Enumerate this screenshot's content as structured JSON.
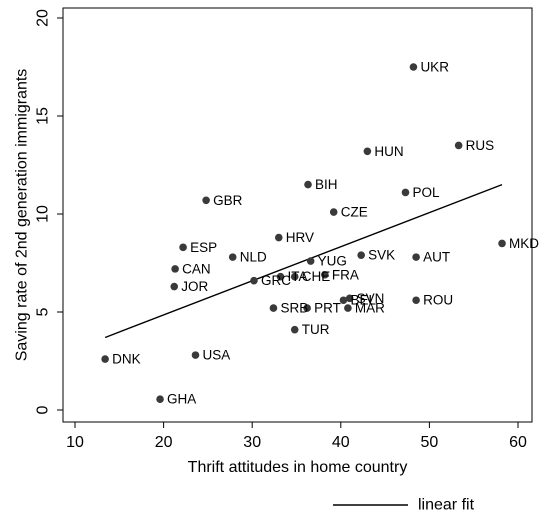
{
  "chart_data": {
    "type": "scatter",
    "xlabel": "Thrift attitudes in home country",
    "ylabel": "Saving rate of 2nd generation immigrants",
    "xlim": [
      10,
      60
    ],
    "ylim": [
      0,
      20
    ],
    "x_ticks": [
      10,
      20,
      30,
      40,
      50,
      60
    ],
    "y_ticks": [
      0,
      5,
      10,
      15,
      20
    ],
    "grid": false,
    "colors": {
      "points": "#3a3a3a",
      "fit_line": "#000000",
      "axis": "#000000"
    },
    "points": [
      {
        "label": "UKR",
        "x": 48.2,
        "y": 17.5
      },
      {
        "label": "RUS",
        "x": 53.3,
        "y": 13.5
      },
      {
        "label": "HUN",
        "x": 43.0,
        "y": 13.2
      },
      {
        "label": "BIH",
        "x": 36.3,
        "y": 11.5
      },
      {
        "label": "POL",
        "x": 47.3,
        "y": 11.1
      },
      {
        "label": "GBR",
        "x": 24.8,
        "y": 10.7
      },
      {
        "label": "CZE",
        "x": 39.2,
        "y": 10.1
      },
      {
        "label": "HRV",
        "x": 33.0,
        "y": 8.8
      },
      {
        "label": "MKD",
        "x": 58.2,
        "y": 8.5
      },
      {
        "label": "ESP",
        "x": 22.2,
        "y": 8.3
      },
      {
        "label": "SVK",
        "x": 42.3,
        "y": 7.9
      },
      {
        "label": "NLD",
        "x": 27.8,
        "y": 7.8
      },
      {
        "label": "AUT",
        "x": 48.5,
        "y": 7.8
      },
      {
        "label": "YUG",
        "x": 36.6,
        "y": 7.6
      },
      {
        "label": "CAN",
        "x": 21.3,
        "y": 7.2
      },
      {
        "label": "FRA",
        "x": 38.2,
        "y": 6.9
      },
      {
        "label": "ITA",
        "x": 33.2,
        "y": 6.8
      },
      {
        "label": "CHE",
        "x": 34.8,
        "y": 6.8
      },
      {
        "label": "GRC",
        "x": 30.2,
        "y": 6.6
      },
      {
        "label": "JOR",
        "x": 21.2,
        "y": 6.3
      },
      {
        "label": "ROU",
        "x": 48.5,
        "y": 5.6
      },
      {
        "label": "SVN",
        "x": 41.0,
        "y": 5.7
      },
      {
        "label": "BEL",
        "x": 40.3,
        "y": 5.6
      },
      {
        "label": "MAR",
        "x": 40.8,
        "y": 5.2
      },
      {
        "label": "SRB",
        "x": 32.4,
        "y": 5.2
      },
      {
        "label": "PRT",
        "x": 36.2,
        "y": 5.2
      },
      {
        "label": "TUR",
        "x": 34.8,
        "y": 4.1
      },
      {
        "label": "USA",
        "x": 23.6,
        "y": 2.8
      },
      {
        "label": "DNK",
        "x": 13.4,
        "y": 2.6
      },
      {
        "label": "GHA",
        "x": 19.6,
        "y": 0.55
      }
    ],
    "fit_line": {
      "name": "linear fit",
      "x": [
        13.4,
        58.2
      ],
      "y": [
        3.7,
        11.5
      ]
    },
    "legend": {
      "position": "bottom-right",
      "entries": [
        "linear fit"
      ]
    }
  }
}
